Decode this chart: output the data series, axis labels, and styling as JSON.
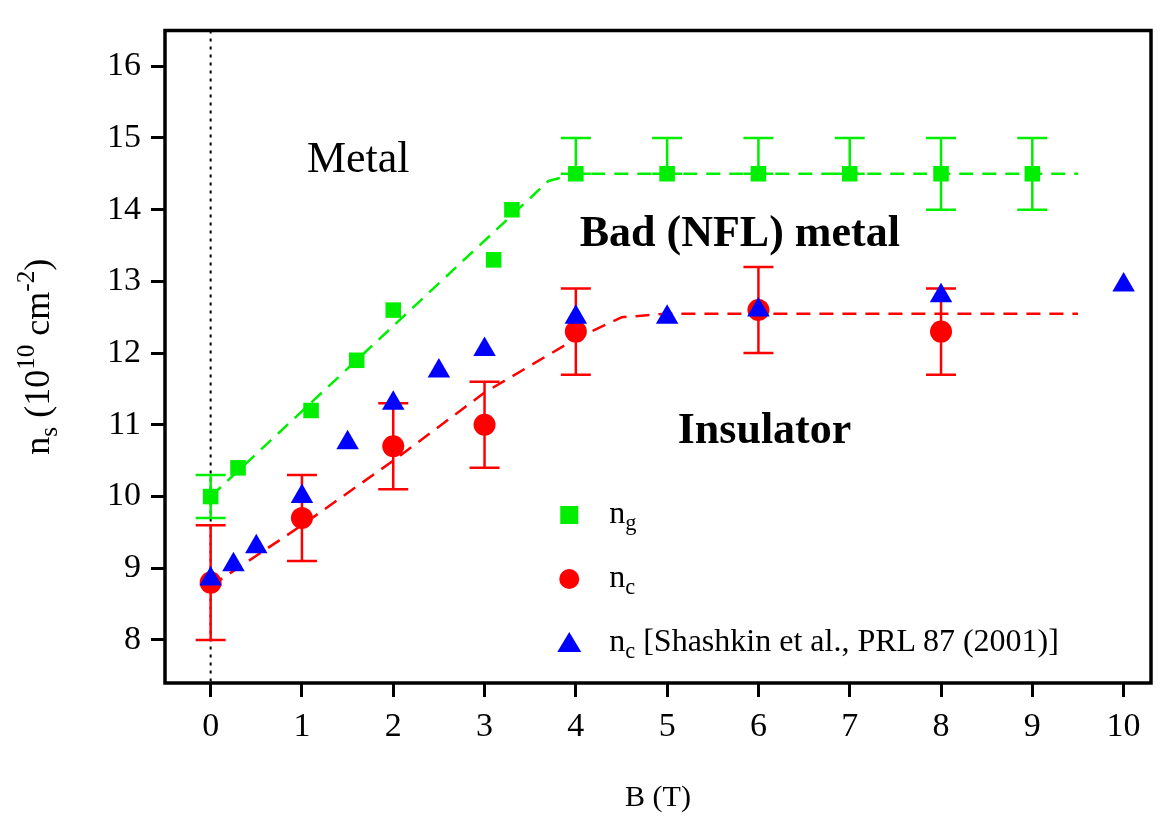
{
  "chart_data": {
    "type": "scatter",
    "xlabel": "B (T)",
    "ylabel": "n$_{s}$ (10$^{10}$ cm$^{-2}$)",
    "xlim": [
      -0.5,
      10.3
    ],
    "ylim": [
      7.4,
      16.5
    ],
    "xticks": [
      0,
      1,
      2,
      3,
      4,
      5,
      6,
      7,
      8,
      9,
      10
    ],
    "yticks": [
      8,
      9,
      10,
      11,
      12,
      13,
      14,
      15,
      16
    ],
    "grid": false,
    "legend": "bottom",
    "series": [
      {
        "name": "n$_{g}$",
        "color": "#00ee00",
        "marker": "square",
        "x": [
          0,
          0.3,
          1.1,
          1.6,
          2,
          3.1,
          3.3,
          4,
          5,
          6,
          7,
          8,
          9
        ],
        "values": [
          10.0,
          10.4,
          11.2,
          11.9,
          12.6,
          13.3,
          14.0,
          14.5,
          14.5,
          14.5,
          14.5,
          14.5,
          14.5
        ],
        "errors": [
          0.3,
          null,
          null,
          null,
          null,
          null,
          null,
          [
            14.5,
            15.0
          ],
          [
            14.5,
            15.0
          ],
          [
            14.5,
            15.0
          ],
          [
            14.5,
            15.0
          ],
          0.5,
          0.5
        ]
      },
      {
        "name": "n$_{c}$",
        "color": "#ff0000",
        "marker": "circle",
        "x": [
          0,
          1,
          2,
          3,
          4,
          6,
          8
        ],
        "values": [
          8.8,
          9.7,
          10.7,
          11.0,
          12.3,
          12.6,
          12.3
        ],
        "errors": [
          [
            8.0,
            9.6
          ],
          0.6,
          0.6,
          0.6,
          0.6,
          0.6,
          0.6
        ]
      },
      {
        "name": "n$_{c}$ [Shashkin et al., PRL 87 (2001)]",
        "color": "#0000ff",
        "marker": "triangle",
        "x": [
          0,
          0.25,
          0.5,
          1,
          1.5,
          2,
          2.5,
          3,
          4,
          5,
          6,
          8,
          10
        ],
        "values": [
          8.85,
          9.05,
          9.3,
          10.0,
          10.75,
          11.3,
          11.75,
          12.05,
          12.5,
          12.5,
          12.6,
          12.8,
          12.95
        ]
      },
      {
        "type": "line",
        "color": "#00ee00",
        "marker": "none",
        "line_style": "dashed",
        "x": [
          0,
          3.7,
          4,
          9.5
        ],
        "values": [
          10.0,
          14.4,
          14.5,
          14.5
        ]
      },
      {
        "type": "line",
        "color": "#ff0000",
        "marker": "none",
        "line_style": "dashed",
        "x": [
          0,
          1,
          2,
          3,
          4,
          4.5,
          5,
          9.5
        ],
        "values": [
          8.75,
          9.6,
          10.5,
          11.45,
          12.2,
          12.5,
          12.55,
          12.55
        ]
      }
    ],
    "ref_lines": [
      {
        "axis": "x",
        "value": 0,
        "color": "#000000",
        "line_style": "dotted"
      }
    ],
    "annotations": [
      "Metal",
      "Bad (NFL) metal",
      "Insulator"
    ]
  }
}
